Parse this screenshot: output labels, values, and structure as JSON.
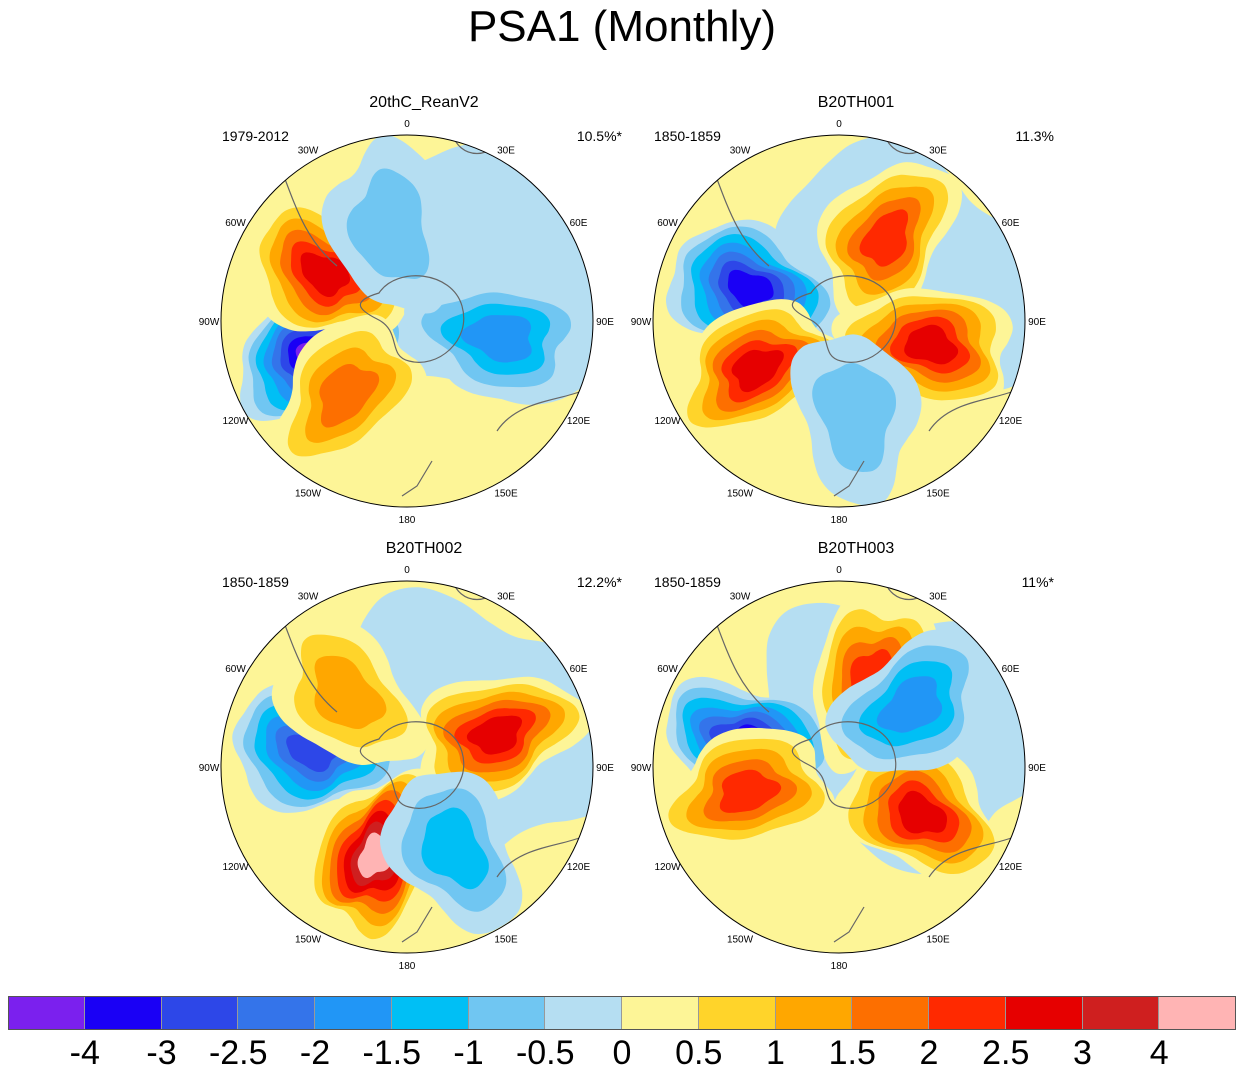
{
  "title": "PSA1 (Monthly)",
  "chart_data": [
    {
      "type": "contour-map",
      "projection": "south-polar-stereographic",
      "title": "20thC_ReanV2",
      "period": "1979-2012",
      "variance_explained": "10.5%*",
      "features": [
        {
          "kind": "low",
          "center_lon": "110W",
          "value": -4
        },
        {
          "kind": "high",
          "center_lon": "60W",
          "value": 2.5
        },
        {
          "kind": "high",
          "center_lon": "140W",
          "value": 1.5
        },
        {
          "kind": "low",
          "center_lon": "100E",
          "value": -1.5
        },
        {
          "kind": "low",
          "center_lon": "10W",
          "value": -0.5
        }
      ]
    },
    {
      "type": "contour-map",
      "projection": "south-polar-stereographic",
      "title": "B20TH001",
      "period": "1850-1859",
      "variance_explained": "11.3%",
      "features": [
        {
          "kind": "low",
          "center_lon": "70W",
          "value": -3
        },
        {
          "kind": "high",
          "center_lon": "30E",
          "value": 2
        },
        {
          "kind": "high",
          "center_lon": "120W",
          "value": 2.5
        },
        {
          "kind": "high",
          "center_lon": "105E",
          "value": 2.5
        },
        {
          "kind": "low",
          "center_lon": "170E",
          "value": -0.5
        }
      ]
    },
    {
      "type": "contour-map",
      "projection": "south-polar-stereographic",
      "title": "B20TH002",
      "period": "1850-1859",
      "variance_explained": "12.2%*",
      "features": [
        {
          "kind": "low",
          "center_lon": "80W",
          "value": -2.5
        },
        {
          "kind": "high",
          "center_lon": "70E",
          "value": 2.5
        },
        {
          "kind": "high",
          "center_lon": "160W",
          "value": 4
        },
        {
          "kind": "high",
          "center_lon": "40W",
          "value": 1
        },
        {
          "kind": "low",
          "center_lon": "150E",
          "value": -1
        }
      ]
    },
    {
      "type": "contour-map",
      "projection": "south-polar-stereographic",
      "title": "B20TH003",
      "period": "1850-1859",
      "variance_explained": "11%*",
      "features": [
        {
          "kind": "low",
          "center_lon": "75W",
          "value": -3
        },
        {
          "kind": "high",
          "center_lon": "105W",
          "value": 2
        },
        {
          "kind": "high",
          "center_lon": "20E",
          "value": 2
        },
        {
          "kind": "high",
          "center_lon": "120E",
          "value": 2.5
        },
        {
          "kind": "low",
          "center_lon": "50E",
          "value": -1.5
        }
      ]
    }
  ],
  "lon_labels": [
    "0",
    "30E",
    "60E",
    "90E",
    "120E",
    "150E",
    "180",
    "150W",
    "120W",
    "90W",
    "60W",
    "30W"
  ],
  "colorbar": {
    "colors": [
      "#7b20ee",
      "#1a00f5",
      "#2d47e8",
      "#3474ea",
      "#2196f6",
      "#00bff5",
      "#70c6f2",
      "#b5def2",
      "#fdf597",
      "#ffd42a",
      "#ffa700",
      "#fd6f00",
      "#ff2900",
      "#e60000",
      "#cf1f1f",
      "#ffb4b4"
    ],
    "labels": [
      "-4",
      "-3",
      "-2.5",
      "-2",
      "-1.5",
      "-1",
      "-0.5",
      "0",
      "0.5",
      "1",
      "1.5",
      "2",
      "2.5",
      "3",
      "4"
    ]
  }
}
